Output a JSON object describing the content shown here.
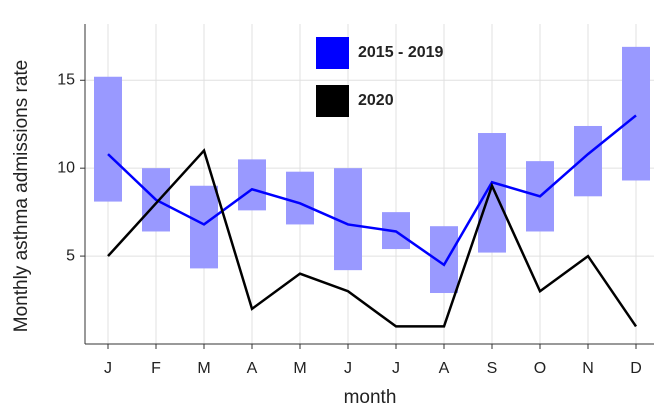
{
  "chart_data": {
    "type": "range-line",
    "x_label": "month",
    "y_label": "Monthly asthma admissions rate",
    "categories": [
      "J",
      "F",
      "M",
      "A",
      "M",
      "J",
      "J",
      "A",
      "S",
      "O",
      "N",
      "D"
    ],
    "series": [
      {
        "name": "2015 - 2019",
        "color": "#0000ff",
        "range_color": "#9999ff",
        "values": [
          10.8,
          8.2,
          6.8,
          8.8,
          8.0,
          6.8,
          6.4,
          4.5,
          9.2,
          8.4,
          10.8,
          13.0
        ],
        "low": [
          8.1,
          6.4,
          4.3,
          7.6,
          6.8,
          4.2,
          5.4,
          2.9,
          5.2,
          6.4,
          8.4,
          9.3
        ],
        "high": [
          15.2,
          10.0,
          9.0,
          10.5,
          9.8,
          10.0,
          7.5,
          6.7,
          12.0,
          10.4,
          12.4,
          16.9
        ]
      },
      {
        "name": "2020",
        "color": "#000000",
        "values": [
          5,
          8,
          11,
          2,
          4,
          3,
          1,
          1,
          9,
          3,
          5,
          1
        ]
      }
    ],
    "ylim": [
      0,
      18.2
    ],
    "yticks": [
      5,
      10,
      15
    ],
    "grid": true
  }
}
